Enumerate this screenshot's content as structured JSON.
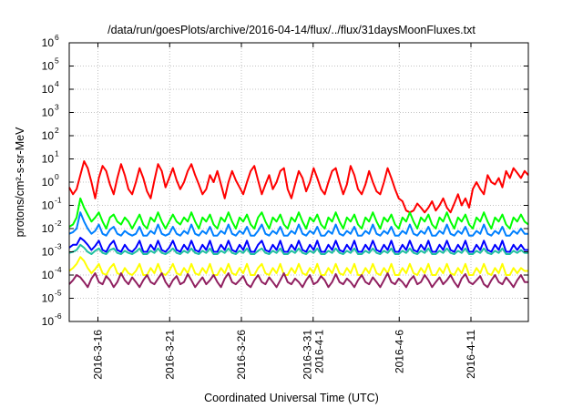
{
  "chart_data": {
    "type": "line",
    "title": "/data/run/goesPlots/archive/2016-04-14/flux/../flux/31daysMoonFluxes.txt",
    "xlabel": "Coordinated Universal Time (UTC)",
    "ylabel": "protons/cm²-s-sr-MeV",
    "yscale": "log",
    "ylim": [
      1e-06,
      1000000.0
    ],
    "y_ticks": [
      {
        "base": "10",
        "exp": "-6"
      },
      {
        "base": "10",
        "exp": "-5"
      },
      {
        "base": "10",
        "exp": "-4"
      },
      {
        "base": "10",
        "exp": "-3"
      },
      {
        "base": "10",
        "exp": "-2"
      },
      {
        "base": "10",
        "exp": "-1"
      },
      {
        "base": "10",
        "exp": "0"
      },
      {
        "base": "10",
        "exp": "1"
      },
      {
        "base": "10",
        "exp": "2"
      },
      {
        "base": "10",
        "exp": "3"
      },
      {
        "base": "10",
        "exp": "4"
      },
      {
        "base": "10",
        "exp": "5"
      },
      {
        "base": "10",
        "exp": "6"
      }
    ],
    "xlim": [
      "2016-03-14",
      "2016-04-15"
    ],
    "x_ticks": [
      {
        "date": "2016-03-16",
        "label": [
          "2016-3-16"
        ]
      },
      {
        "date": "2016-03-21",
        "label": [
          "2016-3-21"
        ]
      },
      {
        "date": "2016-03-26",
        "label": [
          "2016-3-26"
        ]
      },
      {
        "date": "2016-03-31",
        "label": [
          "2016-3-31",
          "2016-4-1"
        ]
      },
      {
        "date": "2016-04-06",
        "label": [
          "2016-4-6"
        ]
      },
      {
        "date": "2016-04-11",
        "label": [
          "2016-4-11"
        ]
      }
    ],
    "grid": true,
    "series": [
      {
        "color": "#ff0000",
        "values": [
          0.6,
          0.3,
          0.5,
          2.0,
          8.0,
          4.0,
          1.0,
          0.2,
          1.5,
          5.0,
          3.0,
          0.8,
          0.3,
          1.5,
          6.0,
          2.0,
          0.5,
          0.3,
          1.0,
          4.0,
          1.5,
          0.4,
          0.2,
          1.2,
          6.0,
          3.0,
          0.6,
          1.5,
          4.0,
          1.2,
          0.5,
          1.0,
          3.0,
          6.0,
          2.0,
          0.8,
          0.3,
          0.5,
          2.0,
          1.0,
          3.0,
          0.8,
          0.2,
          1.0,
          3.0,
          1.2,
          0.6,
          0.3,
          1.0,
          3.0,
          5.0,
          1.2,
          0.3,
          0.8,
          2.0,
          0.5,
          1.0,
          3.0,
          4.0,
          0.5,
          0.2,
          0.8,
          3.0,
          1.5,
          0.4,
          1.0,
          4.0,
          1.5,
          0.5,
          0.3,
          1.0,
          3.0,
          4.0,
          1.0,
          0.3,
          0.8,
          5.0,
          2.0,
          0.5,
          0.3,
          0.8,
          3.0,
          1.0,
          0.4,
          0.3,
          1.0,
          4.0,
          1.5,
          0.5,
          0.2,
          0.15,
          0.06,
          0.05,
          0.06,
          0.12,
          0.08,
          0.05,
          0.08,
          0.15,
          0.06,
          0.1,
          0.2,
          0.08,
          0.05,
          0.12,
          0.3,
          0.1,
          0.2,
          0.08,
          0.5,
          1.0,
          0.5,
          0.3,
          2.0,
          1.0,
          0.8,
          1.5,
          0.6,
          3.0,
          1.5,
          4.0,
          2.5,
          1.5,
          3.0,
          2.0
        ]
      },
      {
        "color": "#00ff00",
        "values": [
          0.012,
          0.015,
          0.03,
          0.2,
          0.08,
          0.04,
          0.02,
          0.03,
          0.05,
          0.02,
          0.01,
          0.03,
          0.04,
          0.02,
          0.015,
          0.03,
          0.02,
          0.01,
          0.02,
          0.04,
          0.015,
          0.01,
          0.03,
          0.02,
          0.05,
          0.02,
          0.01,
          0.02,
          0.04,
          0.02,
          0.015,
          0.03,
          0.02,
          0.05,
          0.02,
          0.01,
          0.03,
          0.02,
          0.04,
          0.015,
          0.01,
          0.03,
          0.02,
          0.05,
          0.02,
          0.01,
          0.03,
          0.02,
          0.04,
          0.015,
          0.01,
          0.03,
          0.05,
          0.02,
          0.01,
          0.03,
          0.02,
          0.04,
          0.015,
          0.01,
          0.03,
          0.02,
          0.05,
          0.02,
          0.01,
          0.03,
          0.02,
          0.04,
          0.015,
          0.01,
          0.03,
          0.02,
          0.05,
          0.02,
          0.01,
          0.03,
          0.02,
          0.04,
          0.015,
          0.01,
          0.03,
          0.02,
          0.05,
          0.02,
          0.01,
          0.03,
          0.02,
          0.04,
          0.015,
          0.01,
          0.03,
          0.02,
          0.05,
          0.02,
          0.01,
          0.03,
          0.02,
          0.04,
          0.015,
          0.01,
          0.03,
          0.02,
          0.05,
          0.02,
          0.01,
          0.03,
          0.02,
          0.04,
          0.015,
          0.01,
          0.03,
          0.02,
          0.05,
          0.02,
          0.01,
          0.03,
          0.02,
          0.04,
          0.015,
          0.01,
          0.03,
          0.02,
          0.04,
          0.02,
          0.015
        ]
      },
      {
        "color": "#0080ff",
        "values": [
          0.006,
          0.007,
          0.01,
          0.05,
          0.02,
          0.01,
          0.006,
          0.008,
          0.015,
          0.006,
          0.005,
          0.009,
          0.012,
          0.006,
          0.005,
          0.008,
          0.006,
          0.005,
          0.006,
          0.012,
          0.005,
          0.005,
          0.008,
          0.006,
          0.015,
          0.006,
          0.005,
          0.006,
          0.012,
          0.006,
          0.005,
          0.008,
          0.006,
          0.015,
          0.006,
          0.005,
          0.008,
          0.006,
          0.012,
          0.005,
          0.005,
          0.008,
          0.006,
          0.015,
          0.006,
          0.005,
          0.008,
          0.006,
          0.012,
          0.005,
          0.005,
          0.008,
          0.015,
          0.006,
          0.005,
          0.008,
          0.006,
          0.012,
          0.005,
          0.005,
          0.008,
          0.006,
          0.015,
          0.006,
          0.005,
          0.008,
          0.006,
          0.012,
          0.005,
          0.005,
          0.008,
          0.006,
          0.015,
          0.006,
          0.005,
          0.008,
          0.006,
          0.012,
          0.005,
          0.005,
          0.008,
          0.006,
          0.015,
          0.006,
          0.005,
          0.008,
          0.006,
          0.012,
          0.005,
          0.005,
          0.008,
          0.006,
          0.015,
          0.006,
          0.005,
          0.008,
          0.006,
          0.012,
          0.005,
          0.005,
          0.008,
          0.006,
          0.015,
          0.006,
          0.005,
          0.008,
          0.006,
          0.012,
          0.005,
          0.005,
          0.008,
          0.006,
          0.015,
          0.006,
          0.005,
          0.008,
          0.006,
          0.012,
          0.005,
          0.005,
          0.008,
          0.006,
          0.01,
          0.006,
          0.006
        ]
      },
      {
        "color": "#0000ff",
        "values": [
          0.0015,
          0.002,
          0.002,
          0.004,
          0.003,
          0.002,
          0.0012,
          0.0018,
          0.003,
          0.0012,
          0.001,
          0.002,
          0.003,
          0.0012,
          0.001,
          0.002,
          0.0012,
          0.001,
          0.0015,
          0.003,
          0.001,
          0.001,
          0.002,
          0.0012,
          0.003,
          0.0012,
          0.001,
          0.0015,
          0.003,
          0.0012,
          0.001,
          0.002,
          0.0012,
          0.003,
          0.0012,
          0.001,
          0.002,
          0.0012,
          0.003,
          0.001,
          0.001,
          0.002,
          0.0012,
          0.003,
          0.0012,
          0.001,
          0.002,
          0.0012,
          0.003,
          0.001,
          0.001,
          0.002,
          0.003,
          0.0012,
          0.001,
          0.002,
          0.0012,
          0.003,
          0.001,
          0.001,
          0.002,
          0.0012,
          0.003,
          0.0012,
          0.001,
          0.002,
          0.0012,
          0.003,
          0.001,
          0.001,
          0.002,
          0.0012,
          0.003,
          0.0012,
          0.001,
          0.002,
          0.0012,
          0.003,
          0.001,
          0.001,
          0.002,
          0.0012,
          0.003,
          0.0012,
          0.001,
          0.002,
          0.0012,
          0.003,
          0.001,
          0.001,
          0.002,
          0.0012,
          0.003,
          0.0012,
          0.001,
          0.002,
          0.0012,
          0.003,
          0.001,
          0.001,
          0.002,
          0.0012,
          0.003,
          0.0012,
          0.001,
          0.002,
          0.0012,
          0.003,
          0.001,
          0.001,
          0.002,
          0.0012,
          0.003,
          0.0012,
          0.001,
          0.002,
          0.0012,
          0.003,
          0.001,
          0.001,
          0.002,
          0.0012,
          0.002,
          0.0012,
          0.0012
        ]
      },
      {
        "color": "#20c0a0",
        "values": [
          0.0009,
          0.001,
          0.0012,
          0.002,
          0.0015,
          0.001,
          0.0008,
          0.0011,
          0.0014,
          0.0009,
          0.0008,
          0.0012,
          0.0014,
          0.0009,
          0.0008,
          0.0011,
          0.0009,
          0.0008,
          0.001,
          0.0014,
          0.0008,
          0.0008,
          0.0011,
          0.0009,
          0.0014,
          0.0009,
          0.0008,
          0.001,
          0.0014,
          0.0009,
          0.0008,
          0.0011,
          0.0009,
          0.0014,
          0.0009,
          0.0008,
          0.0011,
          0.0009,
          0.0014,
          0.0008,
          0.0008,
          0.0011,
          0.0009,
          0.0014,
          0.0009,
          0.0008,
          0.0011,
          0.0009,
          0.0014,
          0.0008,
          0.0008,
          0.0011,
          0.0014,
          0.0009,
          0.0008,
          0.0011,
          0.0009,
          0.0014,
          0.0008,
          0.0008,
          0.0011,
          0.0009,
          0.0014,
          0.0009,
          0.0008,
          0.0011,
          0.0009,
          0.0014,
          0.0008,
          0.0008,
          0.0011,
          0.0009,
          0.0014,
          0.0009,
          0.0008,
          0.0011,
          0.0009,
          0.0014,
          0.0008,
          0.0008,
          0.0011,
          0.0009,
          0.0014,
          0.0009,
          0.0008,
          0.0011,
          0.0009,
          0.0014,
          0.0008,
          0.0008,
          0.0011,
          0.0009,
          0.0014,
          0.0009,
          0.0008,
          0.0011,
          0.0009,
          0.0014,
          0.0008,
          0.0008,
          0.0011,
          0.0009,
          0.0014,
          0.0009,
          0.0008,
          0.0011,
          0.0009,
          0.0014,
          0.0008,
          0.0008,
          0.0011,
          0.0009,
          0.0014,
          0.0009,
          0.0008,
          0.0011,
          0.0009,
          0.0014,
          0.0008,
          0.0008,
          0.0011,
          0.0009,
          0.0012,
          0.0009,
          0.0009
        ]
      },
      {
        "color": "#ffff00",
        "values": [
          0.00015,
          0.0002,
          0.0003,
          0.0006,
          0.0004,
          0.0002,
          0.00012,
          0.00018,
          0.0003,
          0.00012,
          0.0001,
          0.0002,
          0.0003,
          0.00012,
          0.0001,
          0.0002,
          0.00012,
          0.0001,
          0.00015,
          0.0003,
          0.0001,
          0.0001,
          0.0002,
          0.00012,
          0.0003,
          0.00012,
          0.0001,
          0.00015,
          0.0003,
          0.00012,
          0.0001,
          0.0002,
          0.00012,
          0.0003,
          0.00012,
          0.0001,
          0.0002,
          0.00012,
          0.0003,
          0.0001,
          0.0001,
          0.0002,
          0.00012,
          0.0003,
          0.00012,
          0.0001,
          0.0002,
          0.00012,
          0.0003,
          0.0001,
          0.0001,
          0.0002,
          0.0003,
          0.00012,
          0.0001,
          0.0002,
          0.00012,
          0.0003,
          0.0001,
          0.0001,
          0.0002,
          0.00012,
          0.0003,
          0.00012,
          0.0001,
          0.0002,
          0.00012,
          0.0003,
          0.0001,
          0.0001,
          0.0002,
          0.00012,
          0.0003,
          0.00012,
          0.0001,
          0.0002,
          0.00012,
          0.0003,
          0.0001,
          0.0001,
          0.0002,
          0.00012,
          0.0003,
          0.00012,
          0.0001,
          0.0002,
          0.00012,
          0.0003,
          0.0001,
          0.0001,
          0.0002,
          0.00012,
          0.0003,
          0.00012,
          0.0001,
          0.0002,
          0.00012,
          0.0003,
          0.0001,
          0.0001,
          0.0002,
          0.00012,
          0.0003,
          0.00012,
          0.0001,
          0.0002,
          0.00012,
          0.0003,
          0.0001,
          0.0001,
          0.0002,
          0.00012,
          0.0003,
          0.00012,
          0.0001,
          0.0002,
          0.00012,
          0.0003,
          0.0001,
          0.0001,
          0.0002,
          0.00012,
          0.0002,
          0.00015,
          0.00015
        ]
      },
      {
        "color": "#902060",
        "values": [
          4e-05,
          6e-05,
          0.0001,
          8e-05,
          5e-05,
          3e-05,
          7e-05,
          0.00012,
          5e-05,
          4e-05,
          9e-05,
          6e-05,
          3e-05,
          5e-05,
          0.00012,
          6e-05,
          4e-05,
          8e-05,
          5e-05,
          3e-05,
          6e-05,
          0.0001,
          5e-05,
          4e-05,
          7e-05,
          0.00012,
          5e-05,
          3e-05,
          6e-05,
          9e-05,
          4e-05,
          5e-05,
          0.00011,
          6e-05,
          3e-05,
          5e-05,
          8e-05,
          4e-05,
          6e-05,
          0.0001,
          5e-05,
          3e-05,
          7e-05,
          0.00012,
          5e-05,
          4e-05,
          6e-05,
          9e-05,
          4e-05,
          3e-05,
          6e-05,
          0.0001,
          5e-05,
          4e-05,
          8e-05,
          5e-05,
          3e-05,
          6e-05,
          0.00012,
          5e-05,
          4e-05,
          7e-05,
          5e-05,
          3e-05,
          6e-05,
          0.0001,
          4e-05,
          5e-05,
          9e-05,
          6e-05,
          3e-05,
          5e-05,
          0.00011,
          5e-05,
          4e-05,
          7e-05,
          5e-05,
          3e-05,
          6e-05,
          0.0001,
          5e-05,
          4e-05,
          8e-05,
          5e-05,
          3e-05,
          6e-05,
          0.00012,
          5e-05,
          4e-05,
          7e-05,
          5e-05,
          3e-05,
          6e-05,
          9e-05,
          4e-05,
          5e-05,
          0.0001,
          6e-05,
          3e-05,
          5e-05,
          8e-05,
          4e-05,
          6e-05,
          0.0001,
          5e-05,
          3e-05,
          7e-05,
          0.00011,
          5e-05,
          4e-05,
          6e-05,
          9e-05,
          4e-05,
          3e-05,
          6e-05,
          0.0001,
          5e-05,
          4e-05,
          8e-05,
          5e-05,
          3e-05,
          6e-05,
          0.0001,
          5e-05,
          5e-05
        ]
      }
    ]
  }
}
